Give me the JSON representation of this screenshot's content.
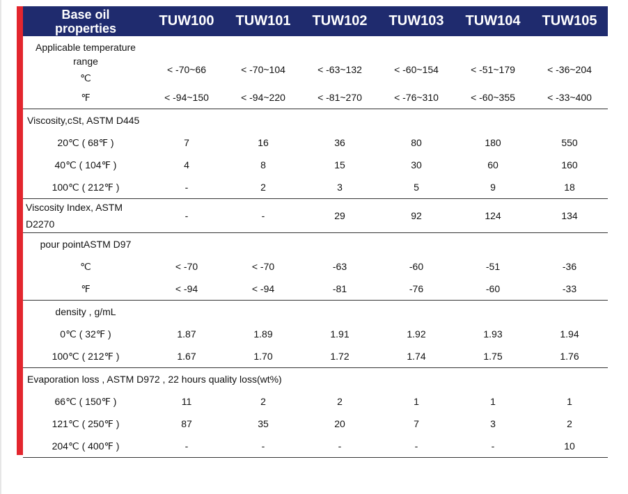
{
  "header": {
    "title_line1": "Base oil",
    "title_line2": "properties",
    "products": [
      "TUW100",
      "TUW101",
      "TUW102",
      "TUW103",
      "TUW104",
      "TUW105"
    ]
  },
  "sections": {
    "temp": {
      "title_line1": "Applicable temperature",
      "title_line2": "range",
      "rows": [
        {
          "label": "℃",
          "values": [
            "< -70~66",
            "< -70~104",
            "< -63~132",
            "< -60~154",
            "< -51~179",
            "< -36~204"
          ]
        },
        {
          "label": "℉",
          "values": [
            "< -94~150",
            "< -94~220",
            "< -81~270",
            "< -76~310",
            "< -60~355",
            "< -33~400"
          ]
        }
      ]
    },
    "viscosity": {
      "title": "Viscosity,cSt, ASTM D445",
      "rows": [
        {
          "label": "20℃ ( 68℉ )",
          "values": [
            "7",
            "16",
            "36",
            "80",
            "180",
            "550"
          ]
        },
        {
          "label": "40℃ ( 104℉ )",
          "values": [
            "4",
            "8",
            "15",
            "30",
            "60",
            "160"
          ]
        },
        {
          "label": "100℃ ( 212℉ )",
          "values": [
            "-",
            "2",
            "3",
            "5",
            "9",
            "18"
          ]
        }
      ]
    },
    "vi": {
      "title_line1": "Viscosity Index, ASTM",
      "title_line2": "D2270",
      "values": [
        "-",
        "-",
        "29",
        "92",
        "124",
        "134"
      ]
    },
    "pour": {
      "title": "pour pointASTM D97",
      "rows": [
        {
          "label": "℃",
          "values": [
            "< -70",
            "< -70",
            "-63",
            "-60",
            "-51",
            "-36"
          ]
        },
        {
          "label": "℉",
          "values": [
            "< -94",
            "< -94",
            "-81",
            "-76",
            "-60",
            "-33"
          ]
        }
      ]
    },
    "density": {
      "title": "density , g/mL",
      "rows": [
        {
          "label": "0℃ ( 32℉ )",
          "values": [
            "1.87",
            "1.89",
            "1.91",
            "1.92",
            "1.93",
            "1.94"
          ]
        },
        {
          "label": "100℃ ( 212℉ )",
          "values": [
            "1.67",
            "1.70",
            "1.72",
            "1.74",
            "1.75",
            "1.76"
          ]
        }
      ]
    },
    "evap": {
      "title": "Evaporation loss , ASTM D972 , 22 hours quality loss(wt%)",
      "rows": [
        {
          "label": "66℃ ( 150℉ )",
          "values": [
            "11",
            "2",
            "2",
            "1",
            "1",
            "1"
          ]
        },
        {
          "label": "121℃ ( 250℉ )",
          "values": [
            "87",
            "35",
            "20",
            "7",
            "3",
            "2"
          ]
        },
        {
          "label": "204℃ ( 400℉ )",
          "values": [
            "-",
            "-",
            "-",
            "-",
            "-",
            "10"
          ]
        }
      ]
    }
  }
}
